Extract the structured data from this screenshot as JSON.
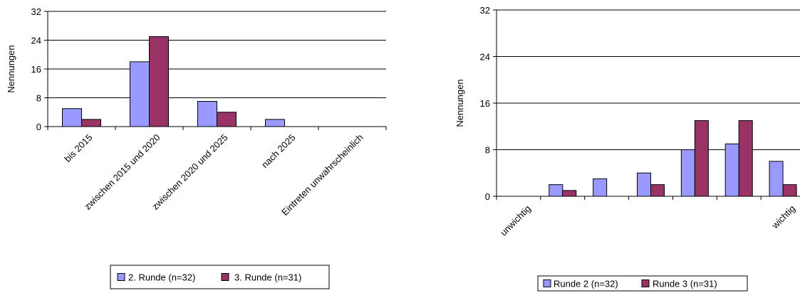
{
  "chart_data": [
    {
      "type": "bar",
      "title": "",
      "xlabel": "",
      "ylabel": "Nennungen",
      "ylim": [
        0,
        32
      ],
      "yticks": [
        "0",
        "8",
        "16",
        "24",
        "32"
      ],
      "grid": true,
      "legend_position": "bottom",
      "categories": [
        "bis 2015",
        "zwischen 2015 und 2020",
        "zwischen 2020 und 2025",
        "nach 2025",
        "Eintreten unwahrscheinlich"
      ],
      "series": [
        {
          "name": "2. Runde (n=32)",
          "values": [
            5,
            18,
            7,
            2,
            0
          ],
          "color": "#9999ff"
        },
        {
          "name": "3. Runde (n=31)",
          "values": [
            2,
            25,
            4,
            0,
            0
          ],
          "color": "#993366"
        }
      ]
    },
    {
      "type": "bar",
      "title": "",
      "xlabel": "",
      "ylabel": "Nennungen",
      "ylim": [
        0,
        32
      ],
      "yticks": [
        "0",
        "8",
        "16",
        "24",
        "32"
      ],
      "grid": true,
      "legend_position": "bottom",
      "categories": [
        "unwichtig",
        "",
        "",
        "",
        "",
        "",
        "wichtig"
      ],
      "series": [
        {
          "name": "Runde 2 (n=32)",
          "values": [
            0,
            2,
            3,
            4,
            8,
            9,
            6
          ],
          "color": "#9999ff"
        },
        {
          "name": "Runde 3 (n=31)",
          "values": [
            0,
            1,
            0,
            2,
            13,
            13,
            2
          ],
          "color": "#993366"
        }
      ]
    }
  ]
}
